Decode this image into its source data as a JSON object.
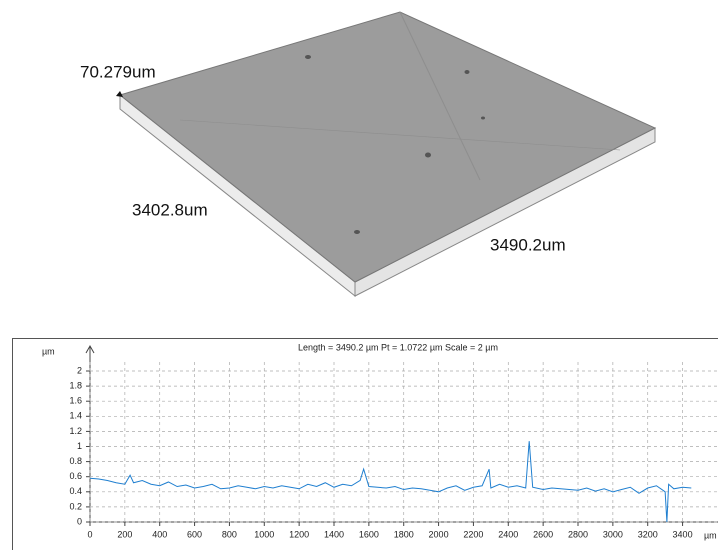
{
  "surface": {
    "height_label": "70.279um",
    "width_label": "3402.8um",
    "depth_label": "3490.2um"
  },
  "chart_data": {
    "type": "line",
    "title": "Length = 3490.2 µm  Pt = 1.0722 µm  Scale = 2 µm",
    "y_unit": "µm",
    "x_unit": "µm",
    "x": [
      0,
      50,
      100,
      150,
      200,
      230,
      250,
      300,
      350,
      400,
      450,
      500,
      550,
      600,
      650,
      700,
      750,
      800,
      850,
      900,
      950,
      1000,
      1050,
      1100,
      1150,
      1200,
      1250,
      1300,
      1350,
      1400,
      1450,
      1500,
      1550,
      1570,
      1600,
      1650,
      1700,
      1750,
      1800,
      1850,
      1900,
      1950,
      2000,
      2050,
      2100,
      2150,
      2200,
      2250,
      2290,
      2300,
      2350,
      2400,
      2450,
      2500,
      2520,
      2540,
      2600,
      2650,
      2700,
      2750,
      2800,
      2850,
      2900,
      2950,
      3000,
      3050,
      3100,
      3150,
      3200,
      3250,
      3300,
      3310,
      3320,
      3350,
      3400,
      3450
    ],
    "series": [
      {
        "color": "#1f7fd0",
        "values": [
          0.58,
          0.57,
          0.55,
          0.52,
          0.5,
          0.62,
          0.52,
          0.55,
          0.5,
          0.48,
          0.53,
          0.47,
          0.49,
          0.45,
          0.47,
          0.5,
          0.44,
          0.45,
          0.48,
          0.46,
          0.44,
          0.47,
          0.45,
          0.48,
          0.46,
          0.44,
          0.5,
          0.47,
          0.52,
          0.46,
          0.5,
          0.48,
          0.55,
          0.7,
          0.47,
          0.46,
          0.45,
          0.47,
          0.43,
          0.45,
          0.44,
          0.42,
          0.4,
          0.45,
          0.48,
          0.42,
          0.46,
          0.48,
          0.7,
          0.45,
          0.5,
          0.46,
          0.48,
          0.45,
          1.07,
          0.46,
          0.43,
          0.45,
          0.44,
          0.43,
          0.42,
          0.45,
          0.41,
          0.44,
          0.4,
          0.43,
          0.46,
          0.38,
          0.45,
          0.48,
          0.4,
          0.0,
          0.5,
          0.44,
          0.46,
          0.45
        ]
      }
    ],
    "xlim": [
      0,
      3500
    ],
    "ylim": [
      0,
      2
    ],
    "xticks": [
      0,
      200,
      400,
      600,
      800,
      1000,
      1200,
      1400,
      1600,
      1800,
      2000,
      2200,
      2400,
      2600,
      2800,
      3000,
      3200,
      3400
    ],
    "yticks": [
      0,
      0.2,
      0.4,
      0.6,
      0.8,
      1,
      1.2,
      1.4,
      1.6,
      1.8,
      2
    ],
    "grid": true
  }
}
